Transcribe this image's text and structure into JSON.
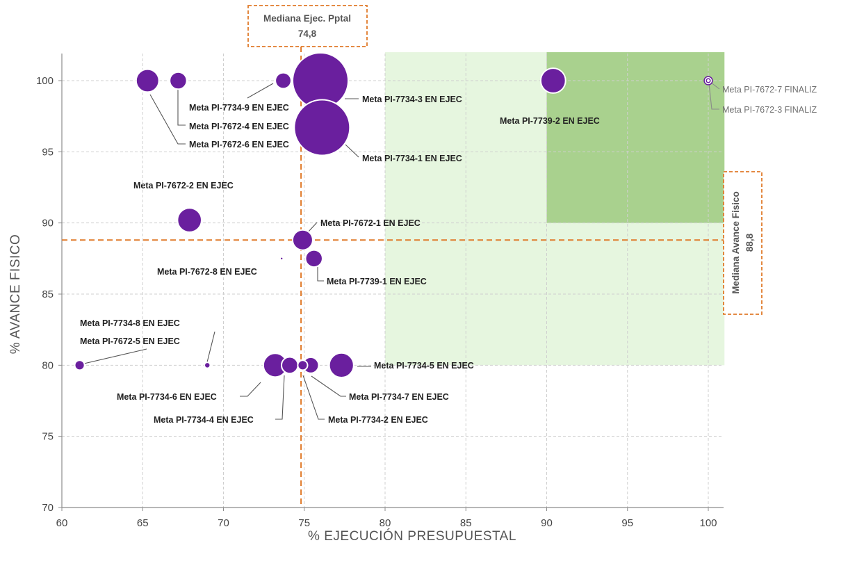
{
  "chart_data": {
    "type": "scatter",
    "title": "",
    "xlabel": "% EJECUCIÓN PRESUPUESTAL",
    "ylabel": "% AVANCE FISICO",
    "xlim": [
      60,
      101
    ],
    "ylim": [
      70,
      102
    ],
    "x_ticks": [
      60,
      65,
      70,
      75,
      80,
      85,
      90,
      95,
      100
    ],
    "y_ticks": [
      70,
      75,
      80,
      85,
      90,
      95,
      100
    ],
    "grid": true,
    "bubble_color": "#6a1f9e",
    "median_color": "#e07a2a",
    "highlight_light": "#e6f6df",
    "highlight_dark": "#a9d18e",
    "highlight_light_region": {
      "x": [
        80,
        101
      ],
      "y": [
        80,
        102
      ]
    },
    "highlight_dark_region": {
      "x": [
        90,
        101
      ],
      "y": [
        90,
        102
      ]
    },
    "median_x": {
      "label": "Mediana Ejec. Pptal",
      "value_label": "74,8",
      "value": 74.8
    },
    "median_y": {
      "label": "Mediana Avance Fisico",
      "value_label": "88,8",
      "value": 88.8
    },
    "points": [
      {
        "label": "Meta PI-7734-9 EN EJEC",
        "x": 73.7,
        "y": 100,
        "size": 1.3
      },
      {
        "label": "Meta PI-7672-4 EN EJEC",
        "x": 67.2,
        "y": 100,
        "size": 1.5
      },
      {
        "label": "Meta PI-7672-6 EN EJEC",
        "x": 65.3,
        "y": 100,
        "size": 2.7
      },
      {
        "label": "Meta PI-7734-3 EN EJEC",
        "x": 76.0,
        "y": 100,
        "size": 16
      },
      {
        "label": "Meta PI-7734-1 EN EJEC",
        "x": 76.1,
        "y": 96.7,
        "size": 16
      },
      {
        "label": "Meta PI-7739-2 EN EJEC",
        "x": 90.4,
        "y": 100,
        "size": 3.2
      },
      {
        "label": "Meta PI-7672-7 FINALIZ",
        "x": 100.0,
        "y": 100,
        "size": 0.35
      },
      {
        "label": "Meta PI-7672-3 FINALIZ",
        "x": 100.0,
        "y": 100,
        "size": 0.08
      },
      {
        "label": "Meta PI-7672-2 EN EJEC",
        "x": 67.9,
        "y": 90.2,
        "size": 3.0
      },
      {
        "label": "Meta PI-7672-1 EN EJEC",
        "x": 74.9,
        "y": 88.8,
        "size": 2.1
      },
      {
        "label": "Meta PI-7672-8 EN EJEC",
        "x": 73.6,
        "y": 87.5,
        "size": 0.05
      },
      {
        "label": "Meta PI-7739-1 EN EJEC",
        "x": 75.6,
        "y": 87.5,
        "size": 1.5
      },
      {
        "label": "Meta PI-7734-8 EN EJEC",
        "x": 61.1,
        "y": 80,
        "size": 0.5
      },
      {
        "label": "Meta PI-7672-5 EN EJEC",
        "x": 69.0,
        "y": 80,
        "size": 0.18
      },
      {
        "label": "Meta PI-7734-6 EN EJEC",
        "x": 73.2,
        "y": 80,
        "size": 2.9
      },
      {
        "label": "Meta PI-7734-4 EN EJEC",
        "x": 74.1,
        "y": 80,
        "size": 1.4
      },
      {
        "label": "Meta PI-7734-7 EN EJEC",
        "x": 75.4,
        "y": 80,
        "size": 1.3
      },
      {
        "label": "Meta PI-7734-2 EN EJEC",
        "x": 74.9,
        "y": 80,
        "size": 0.5
      },
      {
        "label": "Meta PI-7734-5 EN EJEC",
        "x": 77.3,
        "y": 80,
        "size": 3.1
      }
    ]
  }
}
